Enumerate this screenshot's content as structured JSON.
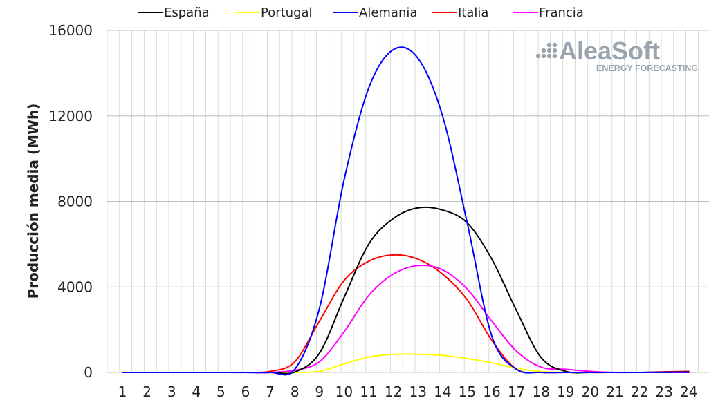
{
  "chart_data": {
    "type": "line",
    "xlabel": "",
    "ylabel": "Producción media (MWh)",
    "ylim": [
      0,
      16000
    ],
    "yticks": [
      "0",
      "4000",
      "8000",
      "12000",
      "16000"
    ],
    "categories": [
      "1",
      "2",
      "3",
      "4",
      "5",
      "6",
      "7",
      "8",
      "9",
      "10",
      "11",
      "12",
      "13",
      "14",
      "15",
      "16",
      "17",
      "18",
      "19",
      "20",
      "21",
      "22",
      "23",
      "24"
    ],
    "grid": true,
    "legend_position": "top",
    "series": [
      {
        "name": "España",
        "color": "#000000",
        "values": [
          0,
          0,
          0,
          0,
          0,
          0,
          0,
          20,
          900,
          3500,
          6000,
          7200,
          7700,
          7600,
          7000,
          5300,
          2900,
          700,
          50,
          0,
          0,
          0,
          10,
          20
        ]
      },
      {
        "name": "Portugal",
        "color": "#ffff00",
        "values": [
          0,
          0,
          0,
          0,
          0,
          0,
          0,
          0,
          50,
          400,
          720,
          850,
          850,
          800,
          650,
          450,
          200,
          40,
          0,
          0,
          0,
          0,
          0,
          0
        ]
      },
      {
        "name": "Alemania",
        "color": "#0000ff",
        "values": [
          0,
          0,
          0,
          0,
          0,
          0,
          0,
          150,
          3000,
          9000,
          13300,
          15100,
          14700,
          12000,
          7000,
          1700,
          150,
          0,
          0,
          0,
          0,
          0,
          10,
          10
        ]
      },
      {
        "name": "Italia",
        "color": "#ff0000",
        "values": [
          0,
          0,
          0,
          0,
          0,
          0,
          50,
          500,
          2400,
          4300,
          5200,
          5500,
          5300,
          4600,
          3400,
          1500,
          150,
          0,
          0,
          0,
          0,
          0,
          30,
          50
        ]
      },
      {
        "name": "Francia",
        "color": "#ff00ff",
        "values": [
          0,
          0,
          0,
          0,
          0,
          0,
          0,
          100,
          500,
          1900,
          3600,
          4600,
          5000,
          4800,
          3900,
          2400,
          1000,
          250,
          150,
          50,
          0,
          0,
          0,
          0
        ]
      }
    ]
  },
  "logo": {
    "main": "AleaSoft",
    "sub": "ENERGY FORECASTING"
  }
}
